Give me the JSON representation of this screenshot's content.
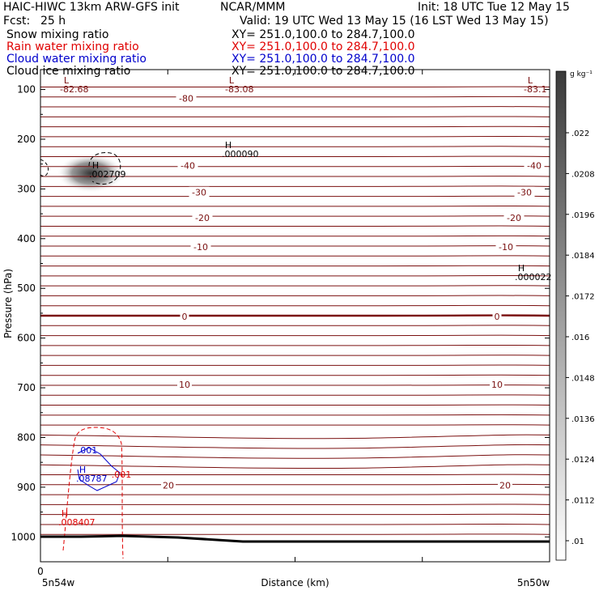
{
  "header": {
    "model": "HAIC-HIWC 13km ARW-GFS init",
    "org": "NCAR/MMM",
    "init": "Init: 18 UTC Tue 12 May 15",
    "fcst_label": "Fcst:",
    "fcst_value": "25 h",
    "valid": "Valid: 19 UTC Wed 13 May 15 (16 LST Wed 13 May 15)",
    "fields": [
      {
        "name": "Snow mixing ratio",
        "xy": "XY= 251.0,100.0 to 284.7,100.0",
        "color": "#000000"
      },
      {
        "name": "Rain water mixing ratio",
        "xy": "XY= 251.0,100.0 to 284.7,100.0",
        "color": "#e00000"
      },
      {
        "name": "Cloud water mixing ratio",
        "xy": "XY= 251.0,100.0 to 284.7,100.0",
        "color": "#0000cc"
      },
      {
        "name": "Cloud ice mixing ratio",
        "xy": "XY= 251.0,100.0 to 284.7,100.0",
        "color": "#000000"
      }
    ]
  },
  "chart_data": {
    "type": "cross-section",
    "xlabel": "Distance (km)",
    "ylabel": "Pressure (hPa)",
    "x_tick_labels": [
      "0"
    ],
    "x_endpoints": [
      "5n54w",
      "5n50w"
    ],
    "y_ticks": [
      100,
      200,
      300,
      400,
      500,
      600,
      700,
      800,
      900,
      1000
    ],
    "ylim": [
      1050,
      60
    ],
    "colorbar": {
      "unit": "g kg⁻¹",
      "labels": [
        ".022",
        ".0208",
        ".0196",
        ".0184",
        ".0172",
        ".016",
        ".0148",
        ".0136",
        ".0124",
        ".0112",
        ".01"
      ],
      "color_top": "#3a3a3a",
      "color_bottom": "#ffffff"
    },
    "temperature_contours": {
      "color": "#7a1010",
      "labeled_levels": [
        {
          "value": "-80",
          "p": 118
        },
        {
          "value": "-40",
          "p": 253
        },
        {
          "value": "-30",
          "p": 307
        },
        {
          "value": "-20",
          "p": 358
        },
        {
          "value": "-10",
          "p": 417
        },
        {
          "value": "0",
          "p": 557
        },
        {
          "value": "10",
          "p": 693
        },
        {
          "value": "20",
          "p": 896
        }
      ]
    },
    "extrema": [
      {
        "type": "L",
        "value": "-82.68",
        "color": "#7a1010"
      },
      {
        "type": "L",
        "value": "-83.08",
        "color": "#7a1010"
      },
      {
        "type": "L",
        "value": "-83.1",
        "color": "#7a1010"
      },
      {
        "type": "H",
        "value": ".000090",
        "color": "#000000"
      },
      {
        "type": "H",
        "value": ".002709",
        "color": "#000000"
      },
      {
        "type": "H",
        "value": ".000022",
        "color": "#000000"
      },
      {
        "type": "H",
        "value": ".08787",
        "color": "#0000cc"
      },
      {
        "type": "H",
        "value": ".008407",
        "color": "#e00000"
      }
    ],
    "contour_labels": [
      {
        "value": ".001",
        "color": "#0000cc"
      },
      {
        "value": ".001",
        "color": "#e00000"
      }
    ]
  }
}
